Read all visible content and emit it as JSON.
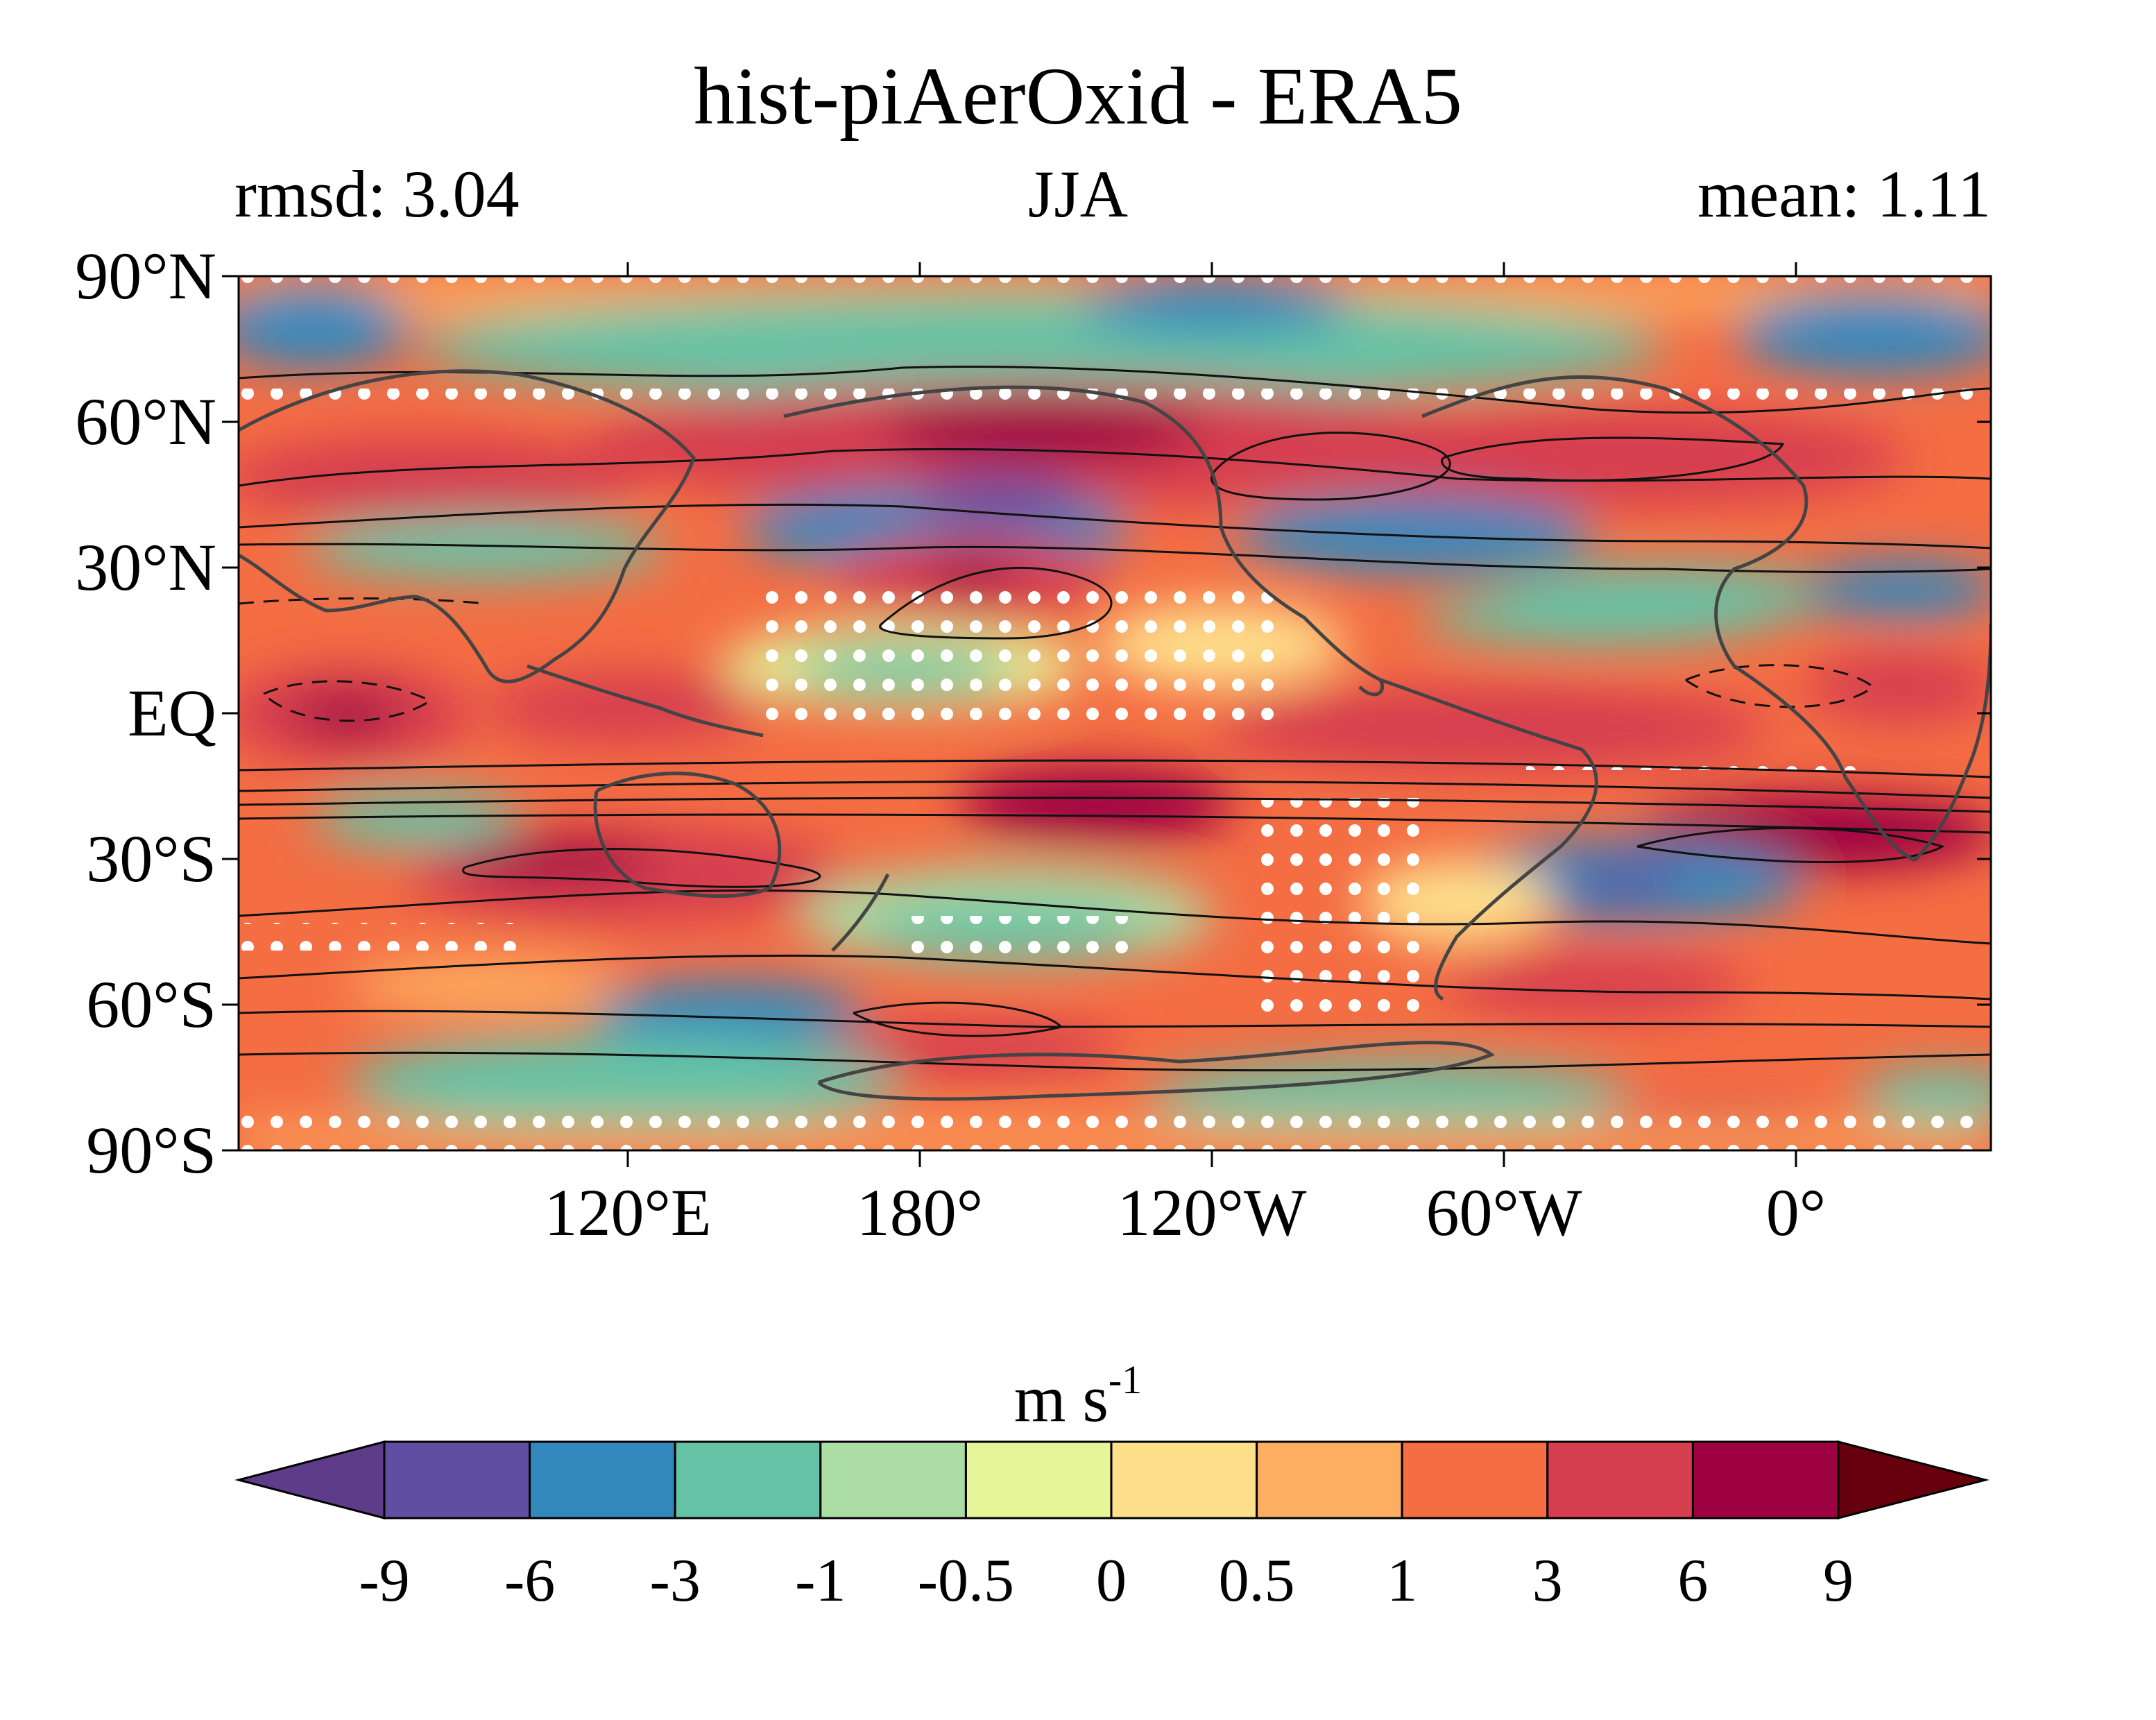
{
  "title": "hist-piAerOxid - ERA5",
  "subtitle_left": "rmsd: 3.04",
  "subtitle_center": "JJA",
  "subtitle_right": "mean: 1.11",
  "lat_labels": [
    "90°N",
    "60°N",
    "30°N",
    "EQ",
    "30°S",
    "60°S",
    "90°S"
  ],
  "lon_labels": [
    "120°E",
    "180°",
    "120°W",
    "60°W",
    "0°"
  ],
  "lon_label_values": [
    120,
    180,
    240,
    300,
    360
  ],
  "colorbar": {
    "units": "m s",
    "units_exponent": "-1",
    "levels": [
      "-9",
      "-6",
      "-3",
      "-1",
      "-0.5",
      "0",
      "0.5",
      "1",
      "3",
      "6",
      "9"
    ],
    "colors": [
      "#5e4fa2",
      "#3288bd",
      "#66c2a5",
      "#abdda4",
      "#e6f598",
      "#fee08b",
      "#fdae61",
      "#f46d43",
      "#d53e4f",
      "#9e0142"
    ],
    "under_color": "#5e3c8a",
    "over_color": "#67000d"
  },
  "chart_data": {
    "type": "heatmap",
    "projection": "equirectangular",
    "lon_range": [
      40,
      400
    ],
    "lat_range": [
      -90,
      90
    ],
    "stippling": "white dots mark statistically non-significant regions",
    "overlay": "black contours of climatological zonal wind; dashed = negative",
    "coastlines": true
  }
}
